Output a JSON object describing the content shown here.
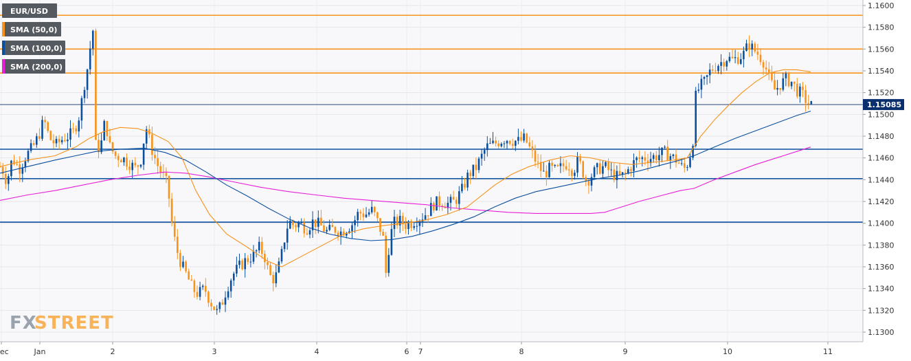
{
  "chart_data": {
    "type": "candlestick",
    "symbol": "EUR/USD",
    "legend": [
      {
        "label": "EUR/USD",
        "swatch": ""
      },
      {
        "label": "SMA (50,0)",
        "swatch": "#f7931a"
      },
      {
        "label": "SMA (100,0)",
        "swatch": "#0a4f9e"
      },
      {
        "label": "SMA (200,0)",
        "swatch": "#e81ed7"
      }
    ],
    "last_price": "1.15085",
    "ylim": [
      1.1293,
      1.161
    ],
    "y_ticks": [
      "1.1600",
      "1.1580",
      "1.1560",
      "1.1540",
      "1.1520",
      "1.1500",
      "1.1480",
      "1.1460",
      "1.1440",
      "1.1420",
      "1.1400",
      "1.1380",
      "1.1360",
      "1.1340",
      "1.1320",
      "1.1300"
    ],
    "x_ticks": [
      "Dec",
      "Jan",
      "2",
      "3",
      "4",
      "6",
      "7",
      "8",
      "9",
      "10",
      "11"
    ],
    "x_tick_pos": [
      2,
      58,
      164,
      312,
      461,
      592,
      612,
      759,
      910,
      1059,
      1205
    ],
    "x_range": [
      0,
      1240
    ],
    "resistance_levels": [
      1.1591,
      1.156,
      1.1538
    ],
    "support_levels": [
      1.1468,
      1.1441,
      1.1401
    ],
    "current_level": 1.1509,
    "colors": {
      "bull": "#0a4f9e",
      "bear": "#f7931a",
      "sma50": "#f7931a",
      "sma100": "#0a4f9e",
      "sma200": "#e81ed7",
      "resistance": "#f7931a",
      "support": "#0a4f9e"
    },
    "close_path": [
      [
        2,
        1.1452
      ],
      [
        10,
        1.1438
      ],
      [
        18,
        1.146
      ],
      [
        28,
        1.145
      ],
      [
        38,
        1.1462
      ],
      [
        48,
        1.147
      ],
      [
        56,
        1.148
      ],
      [
        64,
        1.1495
      ],
      [
        72,
        1.1478
      ],
      [
        82,
        1.1472
      ],
      [
        92,
        1.1478
      ],
      [
        100,
        1.148
      ],
      [
        108,
        1.1485
      ],
      [
        116,
        1.15
      ],
      [
        122,
        1.1525
      ],
      [
        128,
        1.1545
      ],
      [
        134,
        1.1575
      ],
      [
        137,
        1.158
      ],
      [
        139,
        1.1472
      ],
      [
        146,
        1.1468
      ],
      [
        153,
        1.1495
      ],
      [
        160,
        1.147
      ],
      [
        168,
        1.1462
      ],
      [
        178,
        1.146
      ],
      [
        188,
        1.1455
      ],
      [
        198,
        1.145
      ],
      [
        206,
        1.146
      ],
      [
        212,
        1.149
      ],
      [
        220,
        1.147
      ],
      [
        228,
        1.1455
      ],
      [
        236,
        1.1445
      ],
      [
        244,
        1.1435
      ],
      [
        250,
        1.14
      ],
      [
        256,
        1.1378
      ],
      [
        264,
        1.1362
      ],
      [
        272,
        1.1352
      ],
      [
        280,
        1.134
      ],
      [
        288,
        1.1335
      ],
      [
        298,
        1.134
      ],
      [
        306,
        1.1328
      ],
      [
        316,
        1.1318
      ],
      [
        322,
        1.1325
      ],
      [
        330,
        1.134
      ],
      [
        338,
        1.1352
      ],
      [
        348,
        1.136
      ],
      [
        358,
        1.1366
      ],
      [
        368,
        1.137
      ],
      [
        378,
        1.1378
      ],
      [
        386,
        1.1368
      ],
      [
        392,
        1.1352
      ],
      [
        400,
        1.1348
      ],
      [
        408,
        1.1365
      ],
      [
        414,
        1.1385
      ],
      [
        420,
        1.1402
      ],
      [
        428,
        1.1398
      ],
      [
        436,
        1.14
      ],
      [
        446,
        1.1395
      ],
      [
        456,
        1.1402
      ],
      [
        466,
        1.1398
      ],
      [
        476,
        1.1392
      ],
      [
        486,
        1.1395
      ],
      [
        496,
        1.1392
      ],
      [
        506,
        1.1396
      ],
      [
        514,
        1.14
      ],
      [
        522,
        1.141
      ],
      [
        532,
        1.1408
      ],
      [
        542,
        1.1412
      ],
      [
        552,
        1.1398
      ],
      [
        558,
        1.1385
      ],
      [
        562,
        1.1352
      ],
      [
        566,
        1.1378
      ],
      [
        572,
        1.14
      ],
      [
        582,
        1.1402
      ],
      [
        592,
        1.1398
      ],
      [
        602,
        1.1402
      ],
      [
        612,
        1.1405
      ],
      [
        622,
        1.141
      ],
      [
        632,
        1.1418
      ],
      [
        642,
        1.142
      ],
      [
        652,
        1.1418
      ],
      [
        662,
        1.142
      ],
      [
        672,
        1.143
      ],
      [
        682,
        1.1445
      ],
      [
        692,
        1.145
      ],
      [
        700,
        1.146
      ],
      [
        708,
        1.147
      ],
      [
        716,
        1.1472
      ],
      [
        726,
        1.1475
      ],
      [
        736,
        1.1478
      ],
      [
        746,
        1.1476
      ],
      [
        756,
        1.1475
      ],
      [
        764,
        1.1478
      ],
      [
        770,
        1.147
      ],
      [
        776,
        1.1462
      ],
      [
        784,
        1.1452
      ],
      [
        792,
        1.1445
      ],
      [
        800,
        1.145
      ],
      [
        810,
        1.1448
      ],
      [
        818,
        1.1452
      ],
      [
        826,
        1.1455
      ],
      [
        834,
        1.1448
      ],
      [
        842,
        1.1458
      ],
      [
        848,
        1.1448
      ],
      [
        854,
        1.1438
      ],
      [
        862,
        1.1445
      ],
      [
        870,
        1.145
      ],
      [
        880,
        1.1452
      ],
      [
        890,
        1.1446
      ],
      [
        900,
        1.1442
      ],
      [
        910,
        1.1445
      ],
      [
        918,
        1.1452
      ],
      [
        926,
        1.1458
      ],
      [
        936,
        1.146
      ],
      [
        946,
        1.146
      ],
      [
        956,
        1.1462
      ],
      [
        966,
        1.1465
      ],
      [
        976,
        1.1462
      ],
      [
        984,
        1.1458
      ],
      [
        992,
        1.1452
      ],
      [
        998,
        1.145
      ],
      [
        1004,
        1.1462
      ],
      [
        1008,
        1.147
      ],
      [
        1012,
        1.1515
      ],
      [
        1018,
        1.1525
      ],
      [
        1026,
        1.153
      ],
      [
        1034,
        1.154
      ],
      [
        1042,
        1.1545
      ],
      [
        1050,
        1.1548
      ],
      [
        1058,
        1.1552
      ],
      [
        1066,
        1.155
      ],
      [
        1074,
        1.1552
      ],
      [
        1082,
        1.1555
      ],
      [
        1090,
        1.1565
      ],
      [
        1096,
        1.156
      ],
      [
        1104,
        1.1555
      ],
      [
        1112,
        1.1548
      ],
      [
        1120,
        1.1532
      ],
      [
        1128,
        1.1522
      ],
      [
        1136,
        1.1528
      ],
      [
        1144,
        1.1532
      ],
      [
        1152,
        1.153
      ],
      [
        1160,
        1.1522
      ],
      [
        1168,
        1.1518
      ],
      [
        1174,
        1.1512
      ],
      [
        1180,
        1.1508
      ]
    ],
    "sma50": [
      [
        0,
        1.1452
      ],
      [
        40,
        1.1458
      ],
      [
        80,
        1.1462
      ],
      [
        110,
        1.147
      ],
      [
        130,
        1.1478
      ],
      [
        150,
        1.1484
      ],
      [
        175,
        1.1488
      ],
      [
        200,
        1.1487
      ],
      [
        220,
        1.1483
      ],
      [
        245,
        1.1475
      ],
      [
        265,
        1.146
      ],
      [
        285,
        1.143
      ],
      [
        305,
        1.1408
      ],
      [
        330,
        1.139
      ],
      [
        360,
        1.1378
      ],
      [
        390,
        1.1365
      ],
      [
        410,
        1.136
      ],
      [
        440,
        1.137
      ],
      [
        470,
        1.138
      ],
      [
        500,
        1.139
      ],
      [
        530,
        1.1395
      ],
      [
        560,
        1.1398
      ],
      [
        590,
        1.14
      ],
      [
        620,
        1.1403
      ],
      [
        650,
        1.1408
      ],
      [
        680,
        1.1415
      ],
      [
        700,
        1.1425
      ],
      [
        720,
        1.1435
      ],
      [
        745,
        1.1445
      ],
      [
        770,
        1.1452
      ],
      [
        800,
        1.1458
      ],
      [
        830,
        1.1462
      ],
      [
        860,
        1.146
      ],
      [
        890,
        1.1456
      ],
      [
        920,
        1.1454
      ],
      [
        950,
        1.1456
      ],
      [
        980,
        1.1458
      ],
      [
        1000,
        1.146
      ],
      [
        1020,
        1.148
      ],
      [
        1040,
        1.1495
      ],
      [
        1060,
        1.1508
      ],
      [
        1080,
        1.152
      ],
      [
        1100,
        1.153
      ],
      [
        1120,
        1.1538
      ],
      [
        1140,
        1.1541
      ],
      [
        1160,
        1.1541
      ],
      [
        1180,
        1.1539
      ]
    ],
    "sma100": [
      [
        0,
        1.1446
      ],
      [
        40,
        1.1452
      ],
      [
        80,
        1.1458
      ],
      [
        110,
        1.1462
      ],
      [
        140,
        1.1466
      ],
      [
        175,
        1.1468
      ],
      [
        210,
        1.1469
      ],
      [
        240,
        1.1465
      ],
      [
        270,
        1.1458
      ],
      [
        300,
        1.1447
      ],
      [
        330,
        1.1435
      ],
      [
        360,
        1.1425
      ],
      [
        390,
        1.1414
      ],
      [
        420,
        1.1404
      ],
      [
        450,
        1.1396
      ],
      [
        480,
        1.139
      ],
      [
        510,
        1.1386
      ],
      [
        540,
        1.1384
      ],
      [
        570,
        1.1385
      ],
      [
        600,
        1.1388
      ],
      [
        630,
        1.1393
      ],
      [
        660,
        1.1399
      ],
      [
        690,
        1.1406
      ],
      [
        720,
        1.1415
      ],
      [
        750,
        1.1423
      ],
      [
        780,
        1.1429
      ],
      [
        810,
        1.1433
      ],
      [
        840,
        1.1437
      ],
      [
        870,
        1.1441
      ],
      [
        900,
        1.1444
      ],
      [
        930,
        1.1448
      ],
      [
        960,
        1.1453
      ],
      [
        990,
        1.1458
      ],
      [
        1010,
        1.1462
      ],
      [
        1040,
        1.147
      ],
      [
        1070,
        1.1478
      ],
      [
        1100,
        1.1485
      ],
      [
        1130,
        1.1492
      ],
      [
        1160,
        1.1499
      ],
      [
        1180,
        1.1503
      ]
    ],
    "sma200": [
      [
        0,
        1.1421
      ],
      [
        40,
        1.1426
      ],
      [
        80,
        1.143
      ],
      [
        120,
        1.1435
      ],
      [
        160,
        1.144
      ],
      [
        200,
        1.1444
      ],
      [
        240,
        1.1447
      ],
      [
        270,
        1.1446
      ],
      [
        300,
        1.1443
      ],
      [
        340,
        1.1438
      ],
      [
        380,
        1.1433
      ],
      [
        420,
        1.1429
      ],
      [
        460,
        1.1426
      ],
      [
        500,
        1.1423
      ],
      [
        540,
        1.1421
      ],
      [
        580,
        1.1419
      ],
      [
        620,
        1.1417
      ],
      [
        660,
        1.1414
      ],
      [
        700,
        1.1412
      ],
      [
        740,
        1.141
      ],
      [
        780,
        1.1409
      ],
      [
        820,
        1.1409
      ],
      [
        860,
        1.1409
      ],
      [
        880,
        1.141
      ],
      [
        900,
        1.1414
      ],
      [
        930,
        1.142
      ],
      [
        960,
        1.1425
      ],
      [
        990,
        1.143
      ],
      [
        1010,
        1.1432
      ],
      [
        1040,
        1.144
      ],
      [
        1070,
        1.1447
      ],
      [
        1100,
        1.1454
      ],
      [
        1130,
        1.146
      ],
      [
        1160,
        1.1466
      ],
      [
        1180,
        1.147
      ]
    ]
  },
  "branding": {
    "logo_fx": "FX",
    "logo_street": "STREET"
  }
}
